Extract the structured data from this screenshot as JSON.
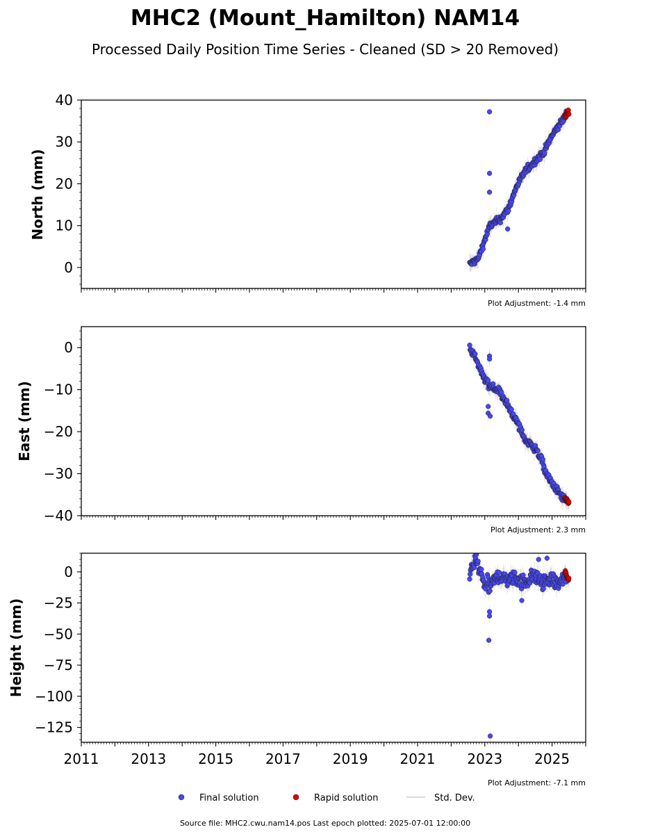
{
  "title": "MHC2 (Mount_Hamilton) NAM14",
  "subtitle": "Processed Daily Position Time Series - Cleaned (SD > 20 Removed)",
  "footer": "Source file: MHC2.cwu.nam14.pos  Last epoch plotted: 2025-07-01 12:00:00",
  "legend": [
    {
      "label": "Final solution",
      "kind": "marker",
      "color": "#4848ee"
    },
    {
      "label": "Rapid solution",
      "kind": "marker",
      "color": "#e00000"
    },
    {
      "label": "Std. Dev.",
      "kind": "line",
      "color": "#cccccc"
    }
  ],
  "colors": {
    "final": "#4848ee",
    "rapid": "#e00000",
    "std_dev": "#b0b0b0",
    "marker_edge": "#1a1a1a"
  },
  "chart_data": [
    {
      "type": "scatter",
      "ylabel": "North (mm)",
      "xlim": [
        2011.0,
        2026.0
      ],
      "ylim": [
        -5,
        40
      ],
      "yticks": [
        0,
        10,
        20,
        30,
        40
      ],
      "ytick_labels": [
        "0",
        "10",
        "20",
        "30",
        "40"
      ],
      "minor_ystep": 2,
      "adjustment": "Plot Adjustment: -1.4 mm",
      "show_xticklabels": false,
      "final_trend": [
        [
          2022.55,
          0.8
        ],
        [
          2022.8,
          2.0
        ],
        [
          2022.95,
          5.5
        ],
        [
          2023.15,
          10.0
        ],
        [
          2023.45,
          11.5
        ],
        [
          2023.7,
          14.0
        ],
        [
          2023.95,
          19.5
        ],
        [
          2024.2,
          23.0
        ],
        [
          2024.5,
          25.5
        ],
        [
          2024.75,
          27.5
        ],
        [
          2025.0,
          31.5
        ],
        [
          2025.25,
          34.5
        ],
        [
          2025.42,
          36.5
        ]
      ],
      "final_noise": 0.8,
      "final_outliers": [
        [
          2023.14,
          37.2
        ],
        [
          2023.14,
          22.5
        ],
        [
          2023.14,
          18.0
        ],
        [
          2023.68,
          9.2
        ]
      ],
      "rapid_trend": [
        [
          2025.38,
          36.0
        ],
        [
          2025.5,
          37.3
        ]
      ],
      "rapid_noise": 0.6
    },
    {
      "type": "scatter",
      "ylabel": "East (mm)",
      "xlim": [
        2011.0,
        2026.0
      ],
      "ylim": [
        -40,
        5
      ],
      "yticks": [
        0,
        -10,
        -20,
        -30,
        -40
      ],
      "ytick_labels": [
        "0",
        "−10",
        "−20",
        "−30",
        "−40"
      ],
      "minor_ystep": 2,
      "adjustment": "Plot Adjustment: 2.3 mm",
      "show_xticklabels": false,
      "final_trend": [
        [
          2022.55,
          0.0
        ],
        [
          2022.75,
          -3.0
        ],
        [
          2022.95,
          -7.0
        ],
        [
          2023.15,
          -9.0
        ],
        [
          2023.45,
          -10.5
        ],
        [
          2023.7,
          -14.0
        ],
        [
          2023.95,
          -17.5
        ],
        [
          2024.2,
          -22.0
        ],
        [
          2024.45,
          -23.5
        ],
        [
          2024.65,
          -26.0
        ],
        [
          2024.85,
          -30.5
        ],
        [
          2025.1,
          -33.5
        ],
        [
          2025.4,
          -36.5
        ]
      ],
      "final_noise": 0.9,
      "final_outliers": [
        [
          2023.14,
          -2.0
        ],
        [
          2023.14,
          -2.7
        ],
        [
          2023.1,
          -14.0
        ],
        [
          2023.1,
          -15.6
        ],
        [
          2023.16,
          -16.3
        ]
      ],
      "rapid_trend": [
        [
          2025.38,
          -36.0
        ],
        [
          2025.5,
          -37.0
        ]
      ],
      "rapid_noise": 0.6
    },
    {
      "type": "scatter",
      "ylabel": "Height (mm)",
      "xlim": [
        2011.0,
        2026.0
      ],
      "ylim": [
        -137,
        15
      ],
      "yticks": [
        0,
        -25,
        -50,
        -75,
        -100,
        -125
      ],
      "ytick_labels": [
        "0",
        "−25",
        "−50",
        "−75",
        "−100",
        "−125"
      ],
      "minor_ystep": 5,
      "xticks": [
        2011,
        2013,
        2015,
        2017,
        2019,
        2021,
        2023,
        2025
      ],
      "xtick_labels": [
        "2011",
        "2013",
        "2015",
        "2017",
        "2019",
        "2021",
        "2023",
        "2025"
      ],
      "adjustment": "Plot Adjustment: -7.1 mm",
      "show_xticklabels": true,
      "final_trend": [
        [
          2022.55,
          0
        ],
        [
          2022.7,
          8
        ],
        [
          2022.8,
          5
        ],
        [
          2022.95,
          -8
        ],
        [
          2023.15,
          -12
        ],
        [
          2023.4,
          -3
        ],
        [
          2023.65,
          -6
        ],
        [
          2023.9,
          -5
        ],
        [
          2024.2,
          -8
        ],
        [
          2024.45,
          -3
        ],
        [
          2024.7,
          -8
        ],
        [
          2024.95,
          -6
        ],
        [
          2025.2,
          -10
        ],
        [
          2025.42,
          -4
        ]
      ],
      "final_noise": 5.5,
      "final_outliers": [
        [
          2023.14,
          -32.0
        ],
        [
          2023.14,
          -35.5
        ],
        [
          2023.12,
          -55.0
        ],
        [
          2023.16,
          -132.0
        ],
        [
          2022.75,
          14.0
        ],
        [
          2024.85,
          11.0
        ],
        [
          2024.6,
          10.0
        ],
        [
          2024.1,
          -23.0
        ]
      ],
      "rapid_trend": [
        [
          2025.38,
          -1.0
        ],
        [
          2025.5,
          -6.0
        ]
      ],
      "rapid_noise": 2.5
    }
  ]
}
